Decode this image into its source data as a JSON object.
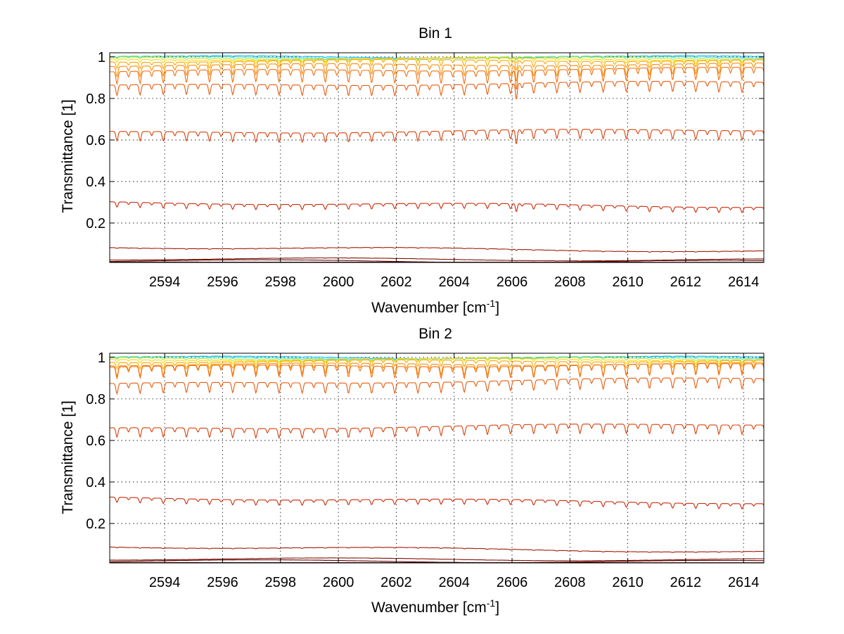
{
  "chart_data": [
    {
      "type": "line",
      "title": "Bin 1",
      "xlabel": "Wavenumber [cm",
      "xlabel_sup": "-1",
      "xlabel_end": "]",
      "ylabel": "Transmittance [1]",
      "xlim": [
        2592.1,
        2614.7
      ],
      "ylim": [
        0.01,
        1.02
      ],
      "xticks": [
        2594,
        2596,
        2598,
        2600,
        2602,
        2604,
        2606,
        2608,
        2610,
        2612,
        2614
      ],
      "yticks": [
        0.2,
        0.4,
        0.6,
        0.8,
        1
      ],
      "grid": true,
      "line_spacing_cm": 0.8,
      "strong_line_at": 2606.15,
      "series": [
        {
          "color": "#00bfff",
          "y_start": 1.0,
          "y_end": 1.0,
          "depth": 0.004
        },
        {
          "color": "#4fd9b5",
          "y_start": 0.998,
          "y_end": 0.998,
          "depth": 0.006
        },
        {
          "color": "#b5e336",
          "y_start": 0.995,
          "y_end": 0.995,
          "depth": 0.01
        },
        {
          "color": "#ffd700",
          "y_start": 0.99,
          "y_end": 0.99,
          "depth": 0.015
        },
        {
          "color": "#ffa500",
          "y_start": 0.98,
          "y_end": 0.985,
          "depth": 0.03
        },
        {
          "color": "#ff8c00",
          "y_start": 0.96,
          "y_end": 0.965,
          "depth": 0.05
        },
        {
          "color": "#f07010",
          "y_start": 0.93,
          "y_end": 0.945,
          "depth": 0.06
        },
        {
          "color": "#e85a0c",
          "y_start": 0.86,
          "y_end": 0.88,
          "depth": 0.05
        },
        {
          "color": "#d8400a",
          "y_start": 0.635,
          "y_end": 0.65,
          "depth": 0.045
        },
        {
          "color": "#c82a08",
          "y_start": 0.3,
          "y_end": 0.28,
          "depth": 0.025
        },
        {
          "color": "#a01808",
          "y_start": 0.085,
          "y_end": 0.065,
          "depth": 0.003
        },
        {
          "color": "#801005",
          "y_start": 0.028,
          "y_end": 0.022,
          "depth": 0.001
        },
        {
          "color": "#600505",
          "y_start": 0.018,
          "y_end": 0.014,
          "depth": 0.0005
        },
        {
          "color": "#400000",
          "y_start": 0.012,
          "y_end": 0.011,
          "depth": 0.0
        }
      ]
    },
    {
      "type": "line",
      "title": "Bin 2",
      "xlabel": "Wavenumber [cm",
      "xlabel_sup": "-1",
      "xlabel_end": "]",
      "ylabel": "Transmittance [1]",
      "xlim": [
        2592.1,
        2614.7
      ],
      "ylim": [
        0.01,
        1.02
      ],
      "xticks": [
        2594,
        2596,
        2598,
        2600,
        2602,
        2604,
        2606,
        2608,
        2610,
        2612,
        2614
      ],
      "yticks": [
        0.2,
        0.4,
        0.6,
        0.8,
        1
      ],
      "grid": true,
      "line_spacing_cm": 0.8,
      "strong_line_at": null,
      "series": [
        {
          "color": "#00bfff",
          "y_start": 1.0,
          "y_end": 1.0,
          "depth": 0.004
        },
        {
          "color": "#4fd9b5",
          "y_start": 0.998,
          "y_end": 0.998,
          "depth": 0.006
        },
        {
          "color": "#b5e336",
          "y_start": 0.995,
          "y_end": 0.995,
          "depth": 0.01
        },
        {
          "color": "#ffd700",
          "y_start": 0.99,
          "y_end": 0.99,
          "depth": 0.015
        },
        {
          "color": "#ffa500",
          "y_start": 0.98,
          "y_end": 0.985,
          "depth": 0.03
        },
        {
          "color": "#ff8c00",
          "y_start": 0.965,
          "y_end": 0.97,
          "depth": 0.05
        },
        {
          "color": "#f07010",
          "y_start": 0.955,
          "y_end": 0.965,
          "depth": 0.055
        },
        {
          "color": "#e85a0c",
          "y_start": 0.87,
          "y_end": 0.9,
          "depth": 0.05
        },
        {
          "color": "#d8400a",
          "y_start": 0.655,
          "y_end": 0.68,
          "depth": 0.045
        },
        {
          "color": "#c82a08",
          "y_start": 0.325,
          "y_end": 0.3,
          "depth": 0.025
        },
        {
          "color": "#a01808",
          "y_start": 0.09,
          "y_end": 0.065,
          "depth": 0.003
        },
        {
          "color": "#801005",
          "y_start": 0.03,
          "y_end": 0.025,
          "depth": 0.001
        },
        {
          "color": "#600505",
          "y_start": 0.02,
          "y_end": 0.016,
          "depth": 0.0005
        },
        {
          "color": "#400000",
          "y_start": 0.012,
          "y_end": 0.011,
          "depth": 0.0
        }
      ]
    }
  ]
}
